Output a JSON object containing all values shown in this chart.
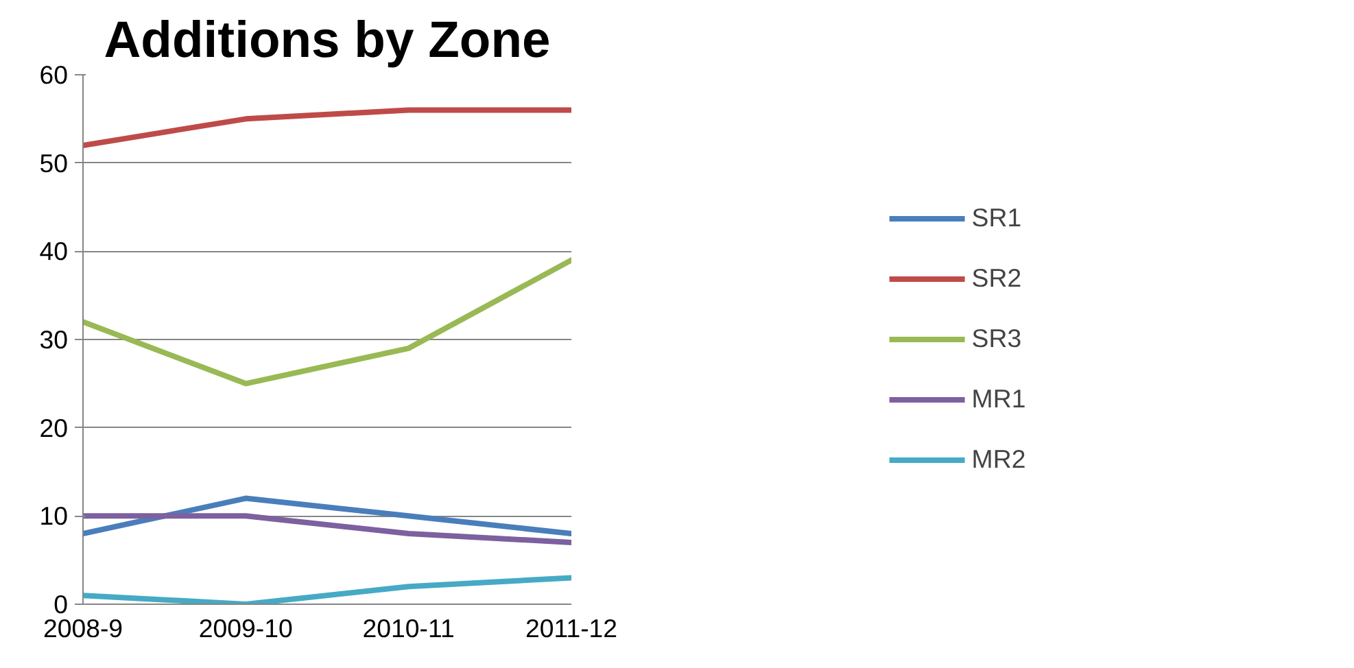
{
  "chart_data": {
    "type": "line",
    "title": "Additions by Zone",
    "categories": [
      "2008-9",
      "2009-10",
      "2010-11",
      "2011-12"
    ],
    "series": [
      {
        "name": "SR1",
        "color": "#4a7ebb",
        "values": [
          8,
          12,
          10,
          8
        ]
      },
      {
        "name": "SR2",
        "color": "#be4b48",
        "values": [
          52,
          55,
          56,
          56
        ]
      },
      {
        "name": "SR3",
        "color": "#98b954",
        "values": [
          32,
          25,
          29,
          39
        ]
      },
      {
        "name": "MR1",
        "color": "#7d60a0",
        "values": [
          10,
          10,
          8,
          7
        ]
      },
      {
        "name": "MR2",
        "color": "#46aac5",
        "values": [
          1,
          0,
          2,
          3
        ]
      }
    ],
    "ylim": [
      0,
      60
    ],
    "yticks": [
      0,
      10,
      20,
      30,
      40,
      50,
      60
    ],
    "grid": "y",
    "legend": "right",
    "marker": "none",
    "line_style": "solid"
  }
}
